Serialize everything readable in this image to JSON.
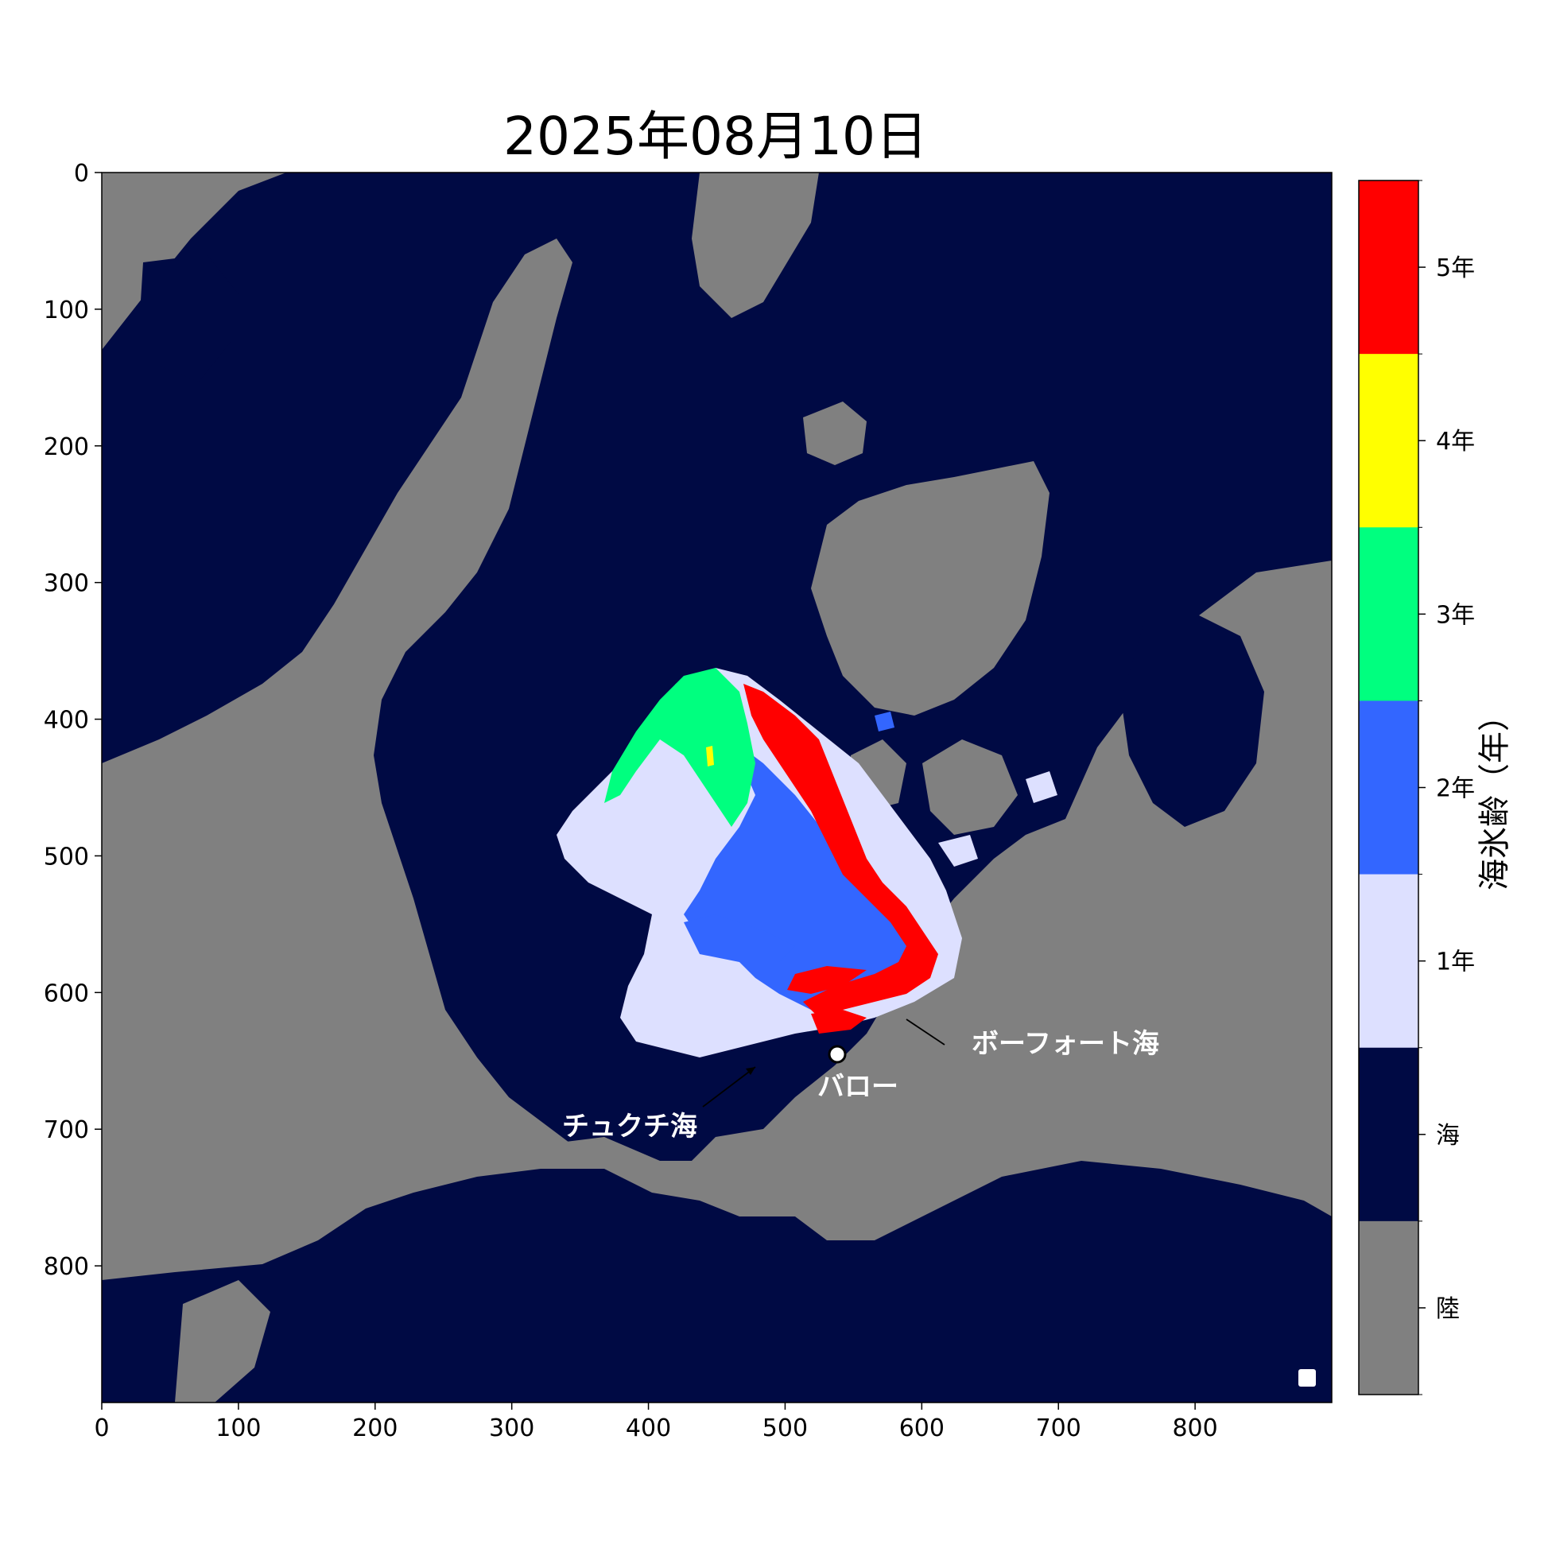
{
  "title": "2025年08月10日",
  "map": {
    "x_ticks": [
      "0",
      "100",
      "200",
      "300",
      "400",
      "500",
      "600",
      "700",
      "800"
    ],
    "y_ticks": [
      "0",
      "100",
      "200",
      "300",
      "400",
      "500",
      "600",
      "700",
      "800"
    ],
    "x_range": [
      0,
      899
    ],
    "y_range": [
      0,
      899
    ],
    "annotations": {
      "beaufort": "ボーフォート海",
      "barrow": "バロー",
      "chukchi": "チュクチ海"
    }
  },
  "colorbar": {
    "label": "海氷齢（年）",
    "categories": [
      {
        "label": "5年",
        "color": "#ff0000"
      },
      {
        "label": "4年",
        "color": "#ffff00"
      },
      {
        "label": "3年",
        "color": "#00ff7f"
      },
      {
        "label": "2年",
        "color": "#3366ff"
      },
      {
        "label": "1年",
        "color": "#dde0ff"
      },
      {
        "label": "海",
        "color": "#000a44"
      },
      {
        "label": "陸",
        "color": "#808080"
      }
    ]
  },
  "colors": {
    "land": "#808080",
    "sea": "#000a44"
  }
}
